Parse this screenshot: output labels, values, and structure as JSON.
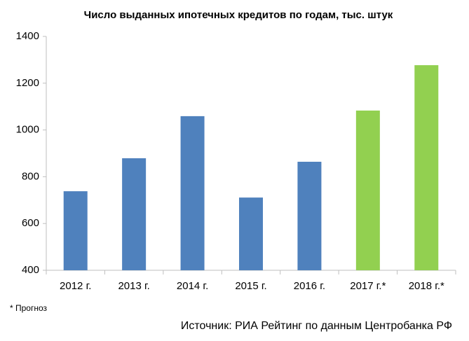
{
  "chart_data": {
    "type": "bar",
    "title": "Число выданных ипотечных кредитов по годам, тыс. штук",
    "categories": [
      "2012 г.",
      "2013 г.",
      "2014 г.",
      "2015 г.",
      "2016 г.",
      "2017 г.*",
      "2018 г.*"
    ],
    "values": [
      738,
      879,
      1059,
      711,
      864,
      1083,
      1277
    ],
    "colors": [
      "#4f81bd",
      "#4f81bd",
      "#4f81bd",
      "#4f81bd",
      "#4f81bd",
      "#92d050",
      "#92d050"
    ],
    "ylim": [
      400,
      1400
    ],
    "yticks": [
      400,
      600,
      800,
      1000,
      1200,
      1400
    ],
    "grid": false,
    "footnote": "* Прогноз",
    "source": "Источник: РИА Рейтинг по данным Центробанка РФ"
  }
}
